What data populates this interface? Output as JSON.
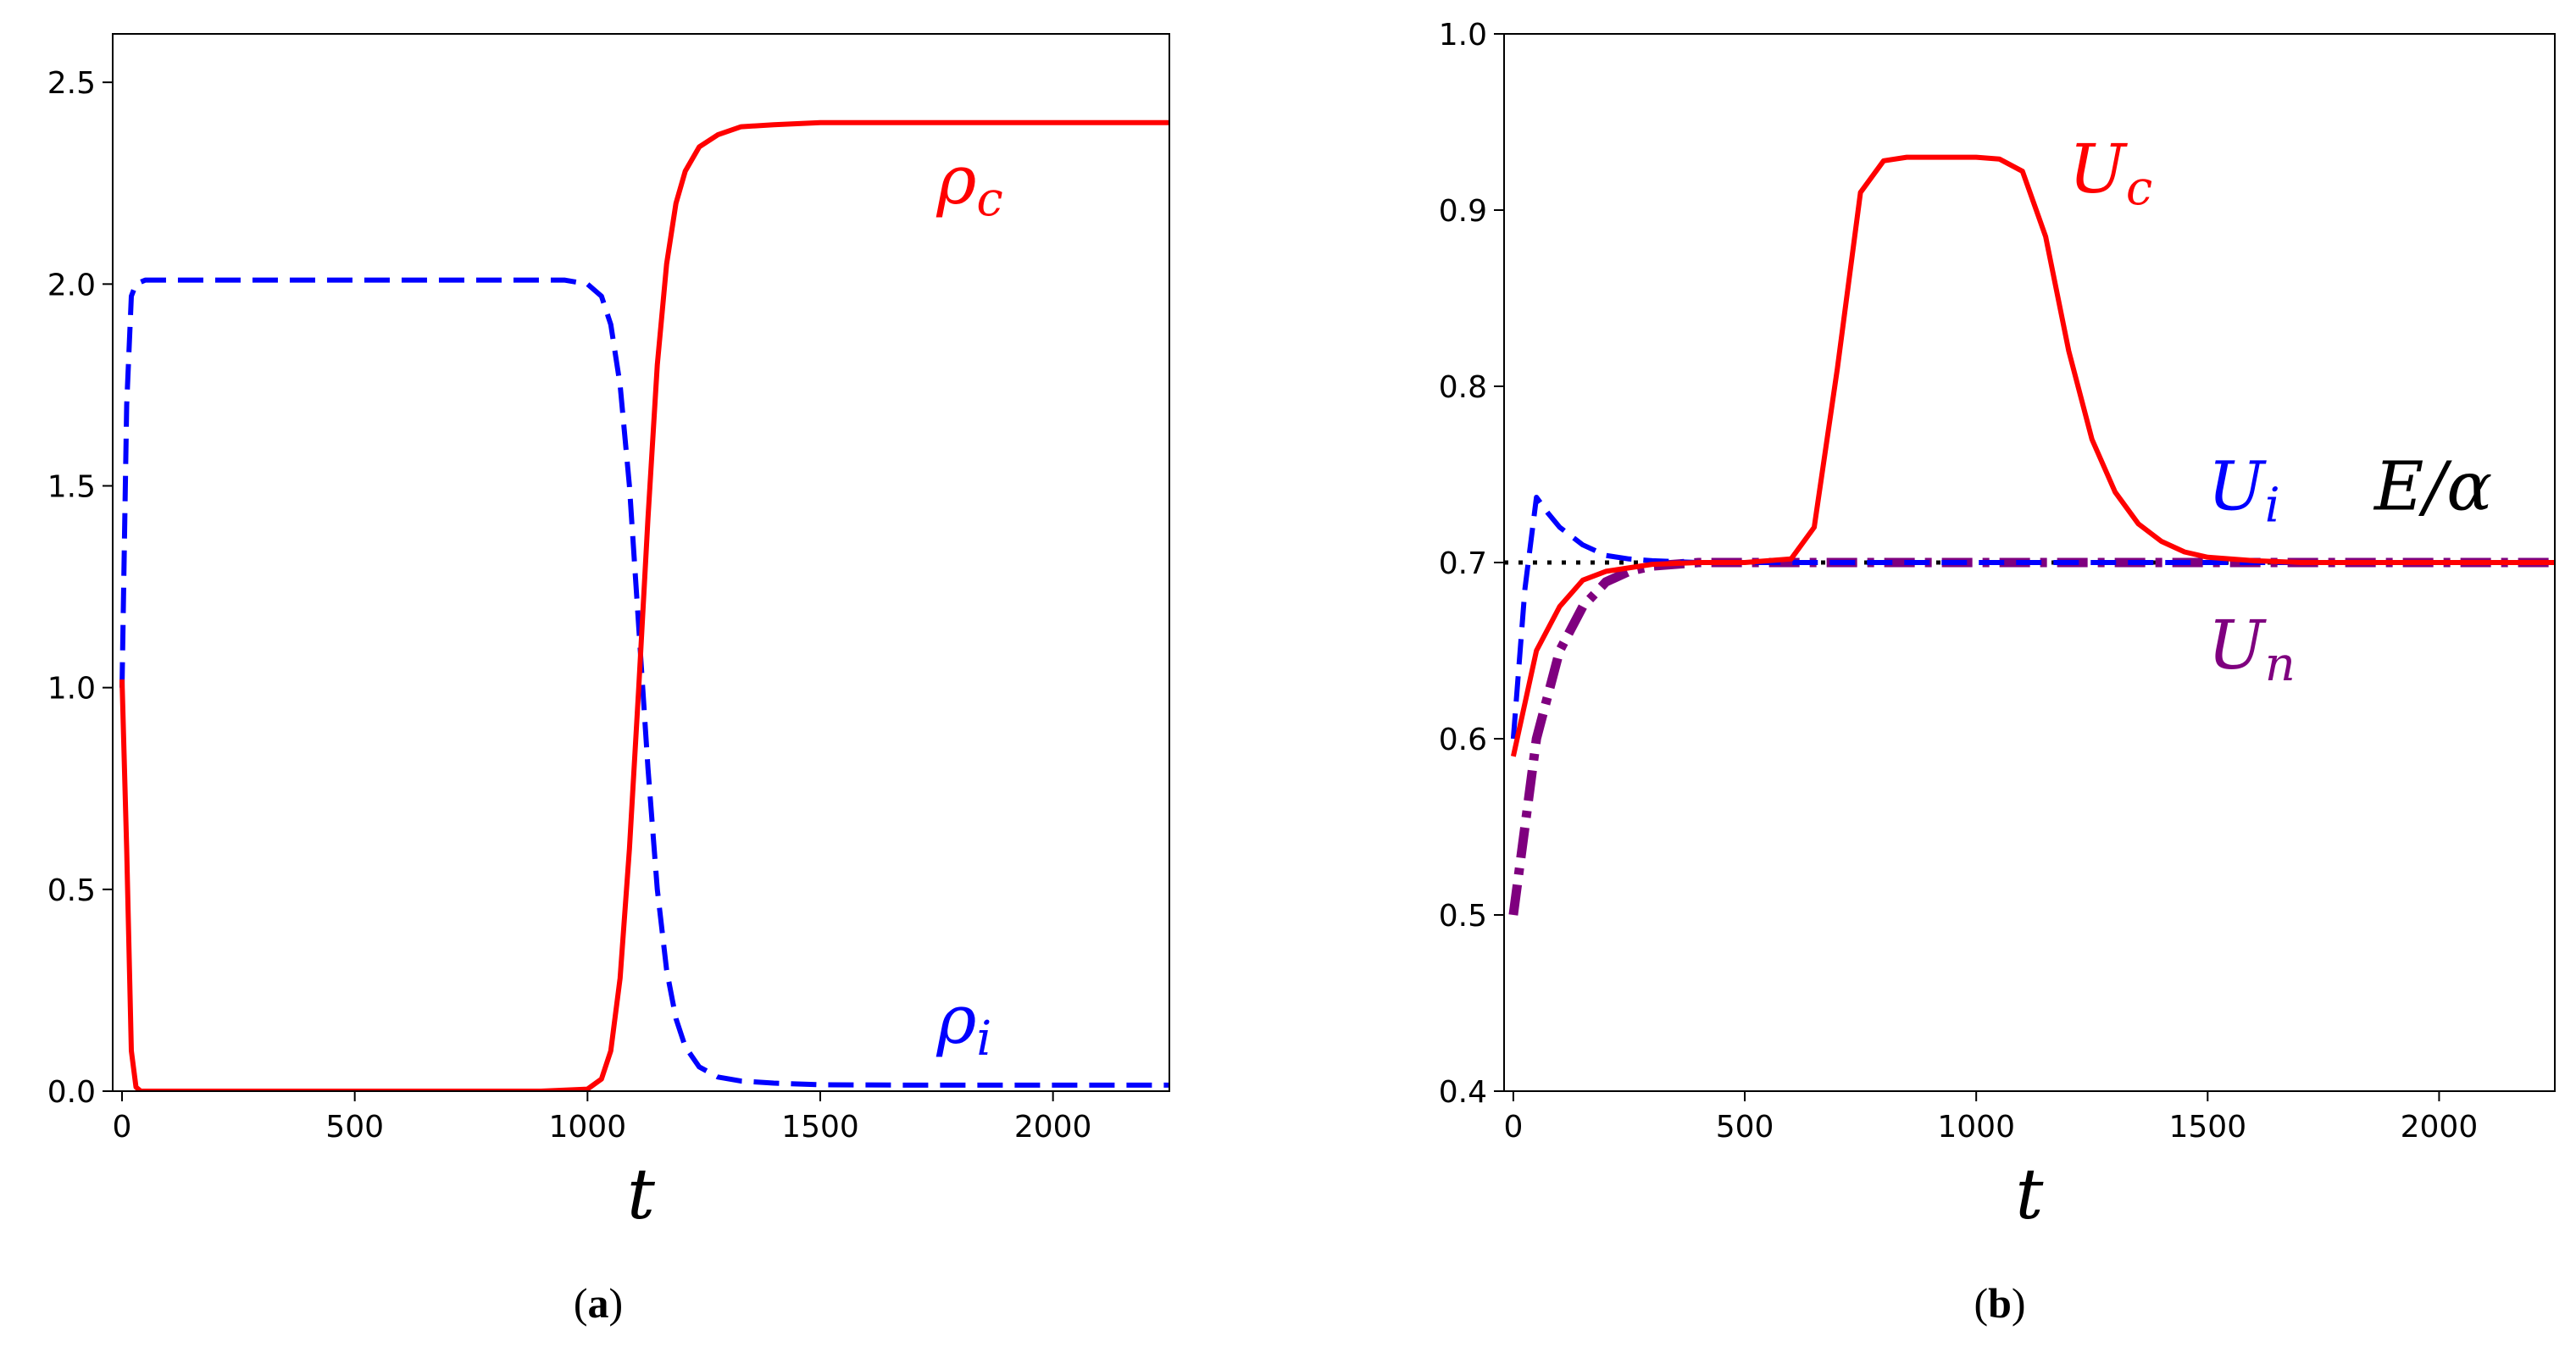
{
  "chart_data": [
    {
      "type": "line",
      "panel": "(a)",
      "caption": {
        "open": "(",
        "letter": "a",
        "close": ")"
      },
      "xlabel": "t",
      "ylabel": "",
      "xlim": [
        -20,
        2250
      ],
      "ylim": [
        0,
        2.62
      ],
      "xticks": [
        0,
        500,
        1000,
        1500,
        2000
      ],
      "xtick_labels": [
        "0",
        "500",
        "1000",
        "1500",
        "2000"
      ],
      "yticks": [
        0.0,
        0.5,
        1.0,
        1.5,
        2.0,
        2.5
      ],
      "ytick_labels": [
        "0.0",
        "0.5",
        "1.0",
        "1.5",
        "2.0",
        "2.5"
      ],
      "series": [
        {
          "name": "rho_c",
          "label": {
            "main": "ρ",
            "sub": "c"
          },
          "label_at": [
            1750,
            2.2
          ],
          "color": "#ff0000",
          "style": "solid",
          "x": [
            0,
            10,
            20,
            30,
            40,
            100,
            500,
            900,
            1000,
            1030,
            1050,
            1070,
            1090,
            1110,
            1130,
            1150,
            1170,
            1190,
            1210,
            1240,
            1280,
            1330,
            1400,
            1500,
            1650,
            1800,
            2000,
            2250
          ],
          "y": [
            1.02,
            0.6,
            0.1,
            0.01,
            0.0,
            0.0,
            0.0,
            0.0,
            0.005,
            0.03,
            0.1,
            0.28,
            0.6,
            1.0,
            1.42,
            1.8,
            2.05,
            2.2,
            2.28,
            2.34,
            2.37,
            2.39,
            2.395,
            2.4,
            2.4,
            2.4,
            2.4,
            2.4
          ]
        },
        {
          "name": "rho_i",
          "label": {
            "main": "ρ",
            "sub": "i"
          },
          "label_at": [
            1750,
            0.12
          ],
          "color": "#0000ff",
          "style": "dashed",
          "x": [
            0,
            10,
            20,
            30,
            50,
            200,
            600,
            950,
            1000,
            1030,
            1050,
            1070,
            1090,
            1110,
            1130,
            1150,
            1170,
            1190,
            1210,
            1240,
            1280,
            1330,
            1400,
            1500,
            1700,
            2000,
            2250
          ],
          "y": [
            1.0,
            1.7,
            1.97,
            2.0,
            2.01,
            2.01,
            2.01,
            2.01,
            2.0,
            1.97,
            1.9,
            1.75,
            1.5,
            1.15,
            0.8,
            0.5,
            0.3,
            0.18,
            0.11,
            0.06,
            0.035,
            0.025,
            0.02,
            0.016,
            0.015,
            0.015,
            0.015
          ]
        }
      ]
    },
    {
      "type": "line",
      "panel": "(b)",
      "caption": {
        "open": "(",
        "letter": "b",
        "close": ")"
      },
      "xlabel": "t",
      "ylabel": "",
      "xlim": [
        -20,
        2250
      ],
      "ylim": [
        0.4,
        1.0
      ],
      "xticks": [
        0,
        500,
        1000,
        1500,
        2000
      ],
      "xtick_labels": [
        "0",
        "500",
        "1000",
        "1500",
        "2000"
      ],
      "yticks": [
        0.4,
        0.5,
        0.6,
        0.7,
        0.8,
        0.9,
        1.0
      ],
      "ytick_labels": [
        "0.4",
        "0.5",
        "0.6",
        "0.7",
        "0.8",
        "0.9",
        "1.0"
      ],
      "reference_line": {
        "label": "E/α",
        "label_at": [
          1860,
          0.73
        ],
        "value": 0.7,
        "color": "#000000",
        "style": "dotted"
      },
      "series": [
        {
          "name": "U_c",
          "label": {
            "main": "U",
            "sub": "c"
          },
          "label_at": [
            1200,
            0.91
          ],
          "color": "#ff0000",
          "style": "solid",
          "x": [
            0,
            50,
            100,
            150,
            200,
            300,
            400,
            500,
            600,
            650,
            700,
            750,
            800,
            850,
            900,
            950,
            1000,
            1050,
            1100,
            1150,
            1200,
            1250,
            1300,
            1350,
            1400,
            1450,
            1500,
            1600,
            1700,
            2000,
            2250
          ],
          "y": [
            0.59,
            0.65,
            0.675,
            0.69,
            0.695,
            0.699,
            0.7,
            0.7,
            0.702,
            0.72,
            0.81,
            0.91,
            0.928,
            0.93,
            0.93,
            0.93,
            0.93,
            0.929,
            0.922,
            0.885,
            0.82,
            0.77,
            0.74,
            0.722,
            0.712,
            0.706,
            0.703,
            0.701,
            0.7,
            0.7,
            0.7
          ]
        },
        {
          "name": "U_i",
          "label": {
            "main": "U",
            "sub": "i"
          },
          "label_at": [
            1500,
            0.73
          ],
          "color": "#0000ff",
          "style": "dashed",
          "x": [
            0,
            25,
            50,
            75,
            100,
            150,
            200,
            250,
            300,
            400,
            600,
            1000,
            1500,
            2000,
            2250
          ],
          "y": [
            0.6,
            0.685,
            0.737,
            0.728,
            0.72,
            0.71,
            0.704,
            0.702,
            0.701,
            0.7,
            0.7,
            0.7,
            0.7,
            0.7,
            0.7
          ]
        },
        {
          "name": "U_n",
          "label": {
            "main": "U",
            "sub": "n"
          },
          "label_at": [
            1500,
            0.64
          ],
          "color": "#7f007f",
          "style": "dashdot",
          "x": [
            0,
            25,
            50,
            100,
            150,
            200,
            250,
            300,
            400,
            500,
            1000,
            1500,
            2000,
            2250
          ],
          "y": [
            0.5,
            0.55,
            0.6,
            0.65,
            0.675,
            0.689,
            0.695,
            0.698,
            0.7,
            0.7,
            0.7,
            0.7,
            0.7,
            0.7
          ]
        }
      ]
    }
  ]
}
